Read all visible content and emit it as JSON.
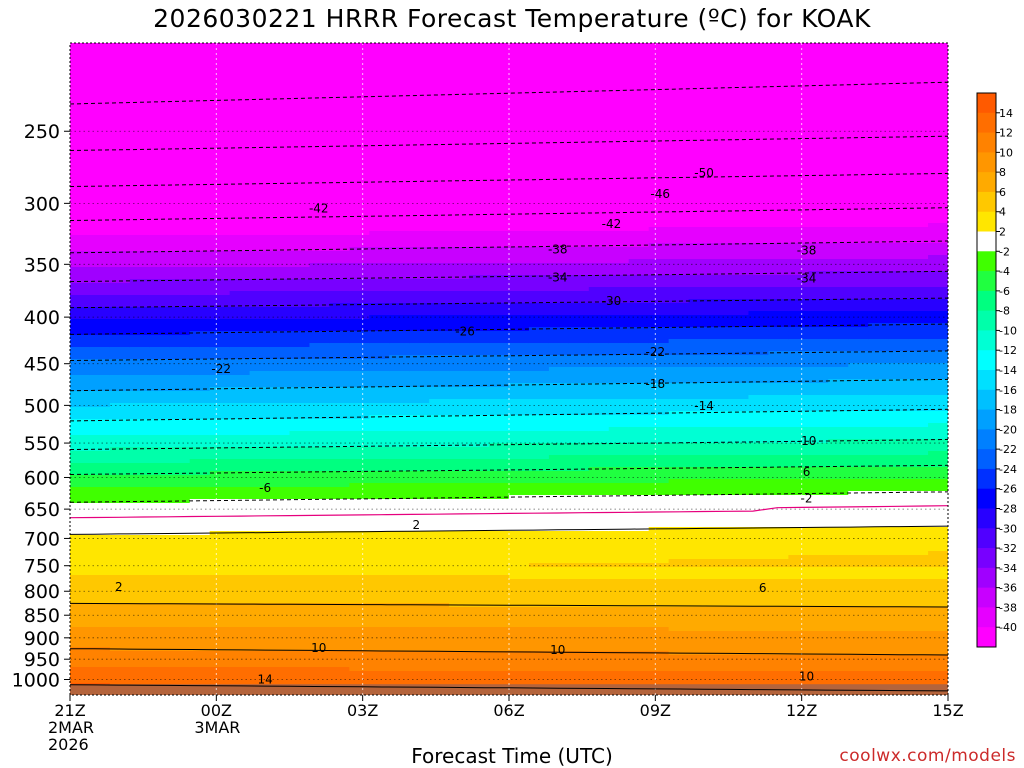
{
  "chart_data": {
    "type": "heatmap",
    "title": "2026030221 HRRR Forecast Temperature (ºC) for KOAK",
    "xlabel": "Forecast Time (UTC)",
    "ylabel": "",
    "credit": "coolwx.com/models",
    "y_axis": {
      "scale": "log",
      "inverted": true,
      "range": [
        200,
        1040
      ],
      "ticks": [
        250,
        300,
        350,
        400,
        450,
        500,
        550,
        600,
        650,
        700,
        750,
        800,
        850,
        900,
        950,
        1000
      ]
    },
    "x_axis": {
      "range_hours": [
        0,
        18
      ],
      "ticks": [
        {
          "hour": 0,
          "lines": [
            "21Z",
            "2MAR",
            "2026"
          ]
        },
        {
          "hour": 3,
          "lines": [
            "00Z",
            "3MAR"
          ]
        },
        {
          "hour": 6,
          "lines": [
            "03Z"
          ]
        },
        {
          "hour": 9,
          "lines": [
            "06Z"
          ]
        },
        {
          "hour": 12,
          "lines": [
            "09Z"
          ]
        },
        {
          "hour": 15,
          "lines": [
            "12Z"
          ]
        },
        {
          "hour": 18,
          "lines": [
            "15Z"
          ]
        }
      ]
    },
    "colorbar": {
      "levels": [
        14,
        12,
        10,
        8,
        6,
        4,
        2,
        -2,
        -4,
        -6,
        -8,
        -10,
        -12,
        -14,
        -16,
        -18,
        -20,
        -22,
        -24,
        -26,
        -28,
        -30,
        -32,
        -34,
        -36,
        -38,
        -40
      ],
      "colors": {
        "gt12": "#ff5a00",
        "12_14": "#ff6e00",
        "10_12": "#ff8200",
        "8_10": "#ff9600",
        "6_8": "#ffaa00",
        "4_6": "#ffc800",
        "2_4": "#ffe600",
        "0_2": "#ffff00",
        "-2_2": "#ffffff",
        "-4_-2": "#40ff00",
        "-6_-4": "#20ff40",
        "-8_-6": "#00ff80",
        "-10_-8": "#00ffaa",
        "-12_-10": "#00ffd4",
        "-14_-12": "#00ffff",
        "-16_-14": "#00e0ff",
        "-18_-16": "#00c0ff",
        "-20_-18": "#00a0ff",
        "-22_-20": "#0080ff",
        "-24_-22": "#0060ff",
        "-26_-24": "#0030ff",
        "-28_-26": "#0000ff",
        "-30_-28": "#2800ff",
        "-32_-30": "#5000ff",
        "-34_-32": "#7800ff",
        "-36_-34": "#a000ff",
        "-38_-36": "#c800ff",
        "-40_-38": "#e600ff",
        "lt-40": "#ff00ff"
      }
    },
    "surface_color": "#b4643c",
    "isotherm_labels": [
      {
        "value": "-50",
        "hour": 13.0,
        "p": 278
      },
      {
        "value": "-46",
        "hour": 12.1,
        "p": 293
      },
      {
        "value": "-42",
        "hour": 5.1,
        "p": 304
      },
      {
        "value": "-42",
        "hour": 11.1,
        "p": 316
      },
      {
        "value": "-38",
        "hour": 10.0,
        "p": 337
      },
      {
        "value": "-38",
        "hour": 15.1,
        "p": 338
      },
      {
        "value": "-34",
        "hour": 10.0,
        "p": 362
      },
      {
        "value": "-34",
        "hour": 15.1,
        "p": 363
      },
      {
        "value": "-30",
        "hour": 11.1,
        "p": 384
      },
      {
        "value": "-26",
        "hour": 8.1,
        "p": 415
      },
      {
        "value": "-22",
        "hour": 3.1,
        "p": 456
      },
      {
        "value": "-22",
        "hour": 12.0,
        "p": 437
      },
      {
        "value": "-18",
        "hour": 12.0,
        "p": 474
      },
      {
        "value": "-14",
        "hour": 13.0,
        "p": 501
      },
      {
        "value": "-10",
        "hour": 15.1,
        "p": 547
      },
      {
        "value": "-6",
        "hour": 4.0,
        "p": 616
      },
      {
        "value": "6",
        "hour": 15.1,
        "p": 592
      },
      {
        "value": "-2",
        "hour": 15.1,
        "p": 633
      },
      {
        "value": "2",
        "hour": 7.1,
        "p": 677
      },
      {
        "value": "2",
        "hour": 1.0,
        "p": 791
      },
      {
        "value": "6",
        "hour": 14.2,
        "p": 793
      },
      {
        "value": "10",
        "hour": 5.1,
        "p": 923
      },
      {
        "value": "10",
        "hour": 10.0,
        "p": 928
      },
      {
        "value": "10",
        "hour": 15.1,
        "p": 992
      },
      {
        "value": "14",
        "hour": 4.0,
        "p": 1000
      }
    ]
  }
}
